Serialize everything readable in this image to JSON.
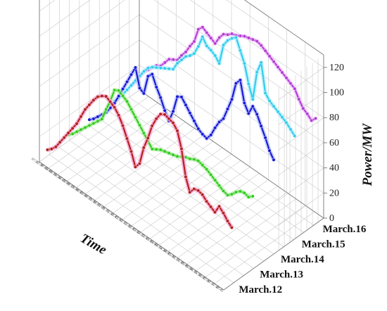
{
  "chart_data": {
    "type": "line",
    "subtype": "3d-waterfall",
    "zlabel": "Power/MW",
    "xlabel": "Time",
    "zlim": [
      0,
      130
    ],
    "zticks": [
      0,
      20,
      40,
      60,
      80,
      100,
      120
    ],
    "grid": true,
    "time_ticks": [
      "07:15",
      "07:30",
      "07:45",
      "08:00",
      "08:15",
      "08:30",
      "08:45",
      "09:00",
      "09:15",
      "09:30",
      "09:45",
      "10:00",
      "10:15",
      "10:30",
      "10:45",
      "11:00",
      "11:15",
      "11:30",
      "11:45",
      "12:00",
      "12:15",
      "12:30",
      "12:45",
      "13:00",
      "13:15",
      "13:30",
      "13:45",
      "14:00",
      "14:15",
      "14:30",
      "14:45",
      "15:00",
      "15:15",
      "15:30",
      "15:45",
      "16:00",
      "16:15",
      "16:30",
      "16:45",
      "17:00",
      "17:15",
      "17:30",
      "17:45"
    ],
    "series": [
      {
        "name": "March.12",
        "color": "#b22222",
        "glow": "#ff9ecf",
        "values": [
          5,
          8,
          12,
          18,
          24,
          30,
          36,
          42,
          50,
          58,
          64,
          70,
          75,
          78,
          80,
          78,
          76,
          72,
          66,
          58,
          50,
          40,
          45,
          60,
          70,
          82,
          90,
          96,
          98,
          97,
          96,
          92,
          80,
          60,
          50,
          55,
          56,
          55,
          52,
          50,
          48,
          55,
          52,
          48,
          45
        ]
      },
      {
        "name": "March.13",
        "color": "#33cc22",
        "glow": "#b6f0a6",
        "values": [
          5,
          8,
          12,
          16,
          20,
          24,
          28,
          32,
          36,
          46,
          55,
          66,
          68,
          66,
          64,
          60,
          56,
          52,
          48,
          44,
          40,
          42,
          44,
          45,
          46,
          47,
          48,
          50,
          52,
          53,
          55,
          56,
          55,
          54,
          52,
          50,
          48,
          46,
          45,
          48,
          52,
          55,
          56,
          55,
          58
        ]
      },
      {
        "name": "March.14",
        "color": "#1a1ad4",
        "glow": "#b6c0ff",
        "values": [
          5,
          8,
          12,
          16,
          20,
          26,
          32,
          40,
          48,
          56,
          64,
          72,
          58,
          56,
          72,
          76,
          68,
          62,
          54,
          48,
          58,
          72,
          74,
          70,
          66,
          62,
          58,
          56,
          55,
          60,
          68,
          75,
          80,
          90,
          100,
          115,
          120,
          104,
          98,
          106,
          102,
          95,
          88,
          80,
          75
        ]
      },
      {
        "name": "March.15",
        "color": "#33ccee",
        "glow": "#b8f0ff",
        "values": [
          5,
          10,
          15,
          20,
          26,
          32,
          38,
          44,
          50,
          55,
          58,
          60,
          62,
          64,
          66,
          68,
          75,
          80,
          85,
          88,
          92,
          100,
          110,
          105,
          104,
          102,
          98,
          115,
          121,
          125,
          128,
          120,
          112,
          98,
          88,
          112,
          122,
          100,
          96,
          94,
          92,
          90,
          88,
          85,
          82
        ]
      },
      {
        "name": "March.16",
        "color": "#b33ed4",
        "glow": "#f2c2ff",
        "values": [
          8,
          14,
          20,
          26,
          30,
          34,
          38,
          40,
          45,
          50,
          52,
          54,
          60,
          65,
          72,
          78,
          90,
          94,
          92,
          90,
          88,
          95,
          100,
          102,
          105,
          106,
          108,
          110,
          111,
          112,
          113,
          112,
          110,
          108,
          106,
          104,
          102,
          100,
          98,
          96,
          90,
          85,
          83,
          80,
          84
        ]
      }
    ]
  }
}
